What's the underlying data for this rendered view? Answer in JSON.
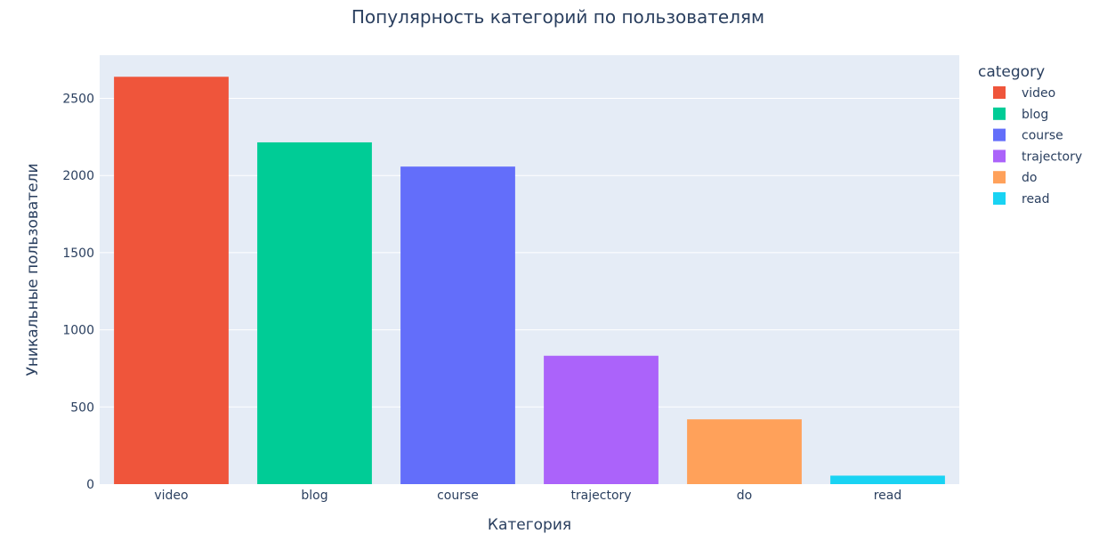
{
  "chart_data": {
    "type": "bar",
    "title": "Популярность категорий по пользователям",
    "xlabel": "Категория",
    "ylabel": "Уникальные пользователи",
    "categories": [
      "video",
      "blog",
      "course",
      "trajectory",
      "do",
      "read"
    ],
    "values": [
      2640,
      2215,
      2058,
      832,
      420,
      55
    ],
    "colors": [
      "#EF553B",
      "#00CC96",
      "#636EFA",
      "#AB63FA",
      "#FFA15A",
      "#19D3F3"
    ],
    "ylim": [
      0,
      2780
    ],
    "yticks": [
      0,
      500,
      1000,
      1500,
      2000,
      2500
    ],
    "grid": true,
    "legend": {
      "title": "category",
      "placement": "right",
      "entries": [
        "video",
        "blog",
        "course",
        "trajectory",
        "do",
        "read"
      ]
    }
  }
}
